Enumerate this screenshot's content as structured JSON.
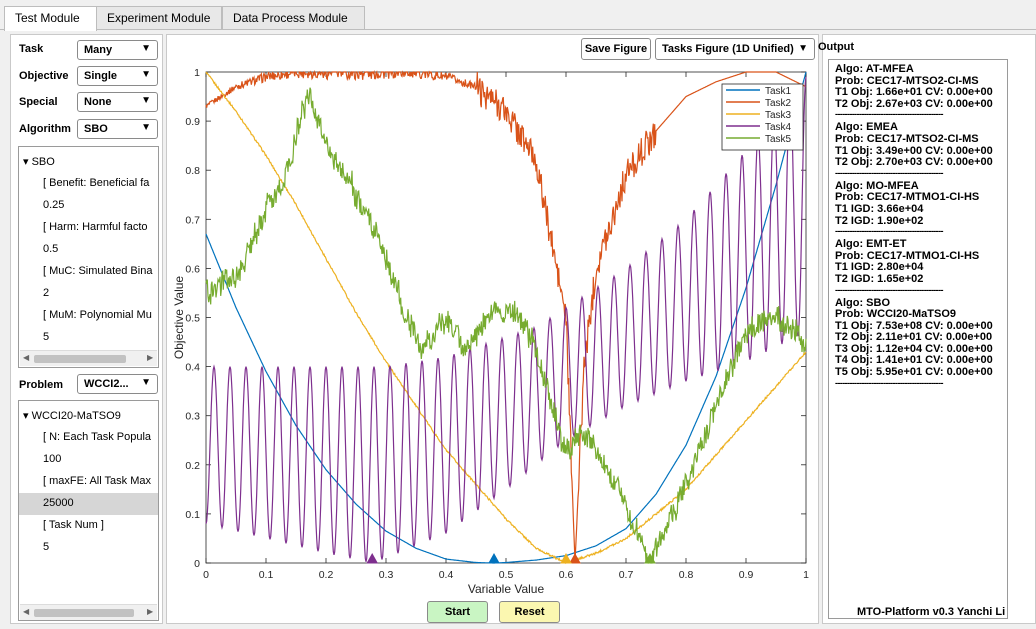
{
  "tabs": [
    {
      "label": "Test Module",
      "active": true
    },
    {
      "label": "Experiment Module",
      "active": false
    },
    {
      "label": "Data Process Module",
      "active": false
    }
  ],
  "left": {
    "task": {
      "label": "Task",
      "value": "Many"
    },
    "objective": {
      "label": "Objective",
      "value": "Single"
    },
    "special": {
      "label": "Special",
      "value": "None"
    },
    "algorithm": {
      "label": "Algorithm",
      "value": "SBO"
    },
    "algo_tree": [
      {
        "text": "▾ SBO",
        "indent": 0
      },
      {
        "text": "[ Benefit: Beneficial fa",
        "indent": 1
      },
      {
        "text": "0.25",
        "indent": 1
      },
      {
        "text": "[ Harm: Harmful facto",
        "indent": 1
      },
      {
        "text": "0.5",
        "indent": 1
      },
      {
        "text": "[ MuC: Simulated Bina",
        "indent": 1
      },
      {
        "text": "2",
        "indent": 1
      },
      {
        "text": "[ MuM: Polynomial Mu",
        "indent": 1
      },
      {
        "text": "5",
        "indent": 1
      }
    ],
    "problem": {
      "label": "Problem",
      "value": "WCCI2..."
    },
    "problem_tree": [
      {
        "text": "▾ WCCI20-MaTSO9",
        "indent": 0,
        "selected": false
      },
      {
        "text": "[ N: Each Task Popula",
        "indent": 1,
        "selected": false
      },
      {
        "text": "100",
        "indent": 1,
        "selected": false
      },
      {
        "text": "[ maxFE: All Task Max",
        "indent": 1,
        "selected": false
      },
      {
        "text": "25000",
        "indent": 1,
        "selected": true
      },
      {
        "text": "[ Task Num ]",
        "indent": 1,
        "selected": false
      },
      {
        "text": "5",
        "indent": 1,
        "selected": false
      }
    ]
  },
  "center": {
    "save_figure": "Save Figure",
    "figure_type": "Tasks Figure (1D Unified)",
    "start": "Start",
    "reset": "Reset"
  },
  "output": {
    "title": "Output",
    "separator": "---------------------------------------------",
    "blocks": [
      [
        "Algo: AT-MFEA",
        "Prob: CEC17-MTSO2-CI-MS",
        "T1 Obj: 1.66e+01 CV: 0.00e+00",
        "T2 Obj: 2.67e+03 CV: 0.00e+00"
      ],
      [
        "Algo: EMEA",
        "Prob: CEC17-MTSO2-CI-MS",
        "T1 Obj: 3.49e+00 CV: 0.00e+00",
        "T2 Obj: 2.70e+03 CV: 0.00e+00"
      ],
      [
        "Algo: MO-MFEA",
        "Prob: CEC17-MTMO1-CI-HS",
        "T1 IGD: 3.66e+04",
        "T2 IGD: 1.90e+02"
      ],
      [
        "Algo: EMT-ET",
        "Prob: CEC17-MTMO1-CI-HS",
        "T1 IGD: 2.80e+04",
        "T2 IGD: 1.65e+02"
      ],
      [
        "Algo: SBO",
        "Prob: WCCI20-MaTSO9",
        "T1 Obj: 7.53e+08 CV: 0.00e+00",
        "T2 Obj: 2.11e+01 CV: 0.00e+00",
        "T3 Obj: 1.12e+04 CV: 0.00e+00",
        "T4 Obj: 1.41e+01 CV: 0.00e+00",
        "T5 Obj: 5.95e+01 CV: 0.00e+00"
      ]
    ],
    "footer": "MTO-Platform v0.3  Yanchi Li"
  },
  "chart_data": {
    "type": "line",
    "xlabel": "Variable Value",
    "ylabel": "Objective Value",
    "xlim": [
      0,
      1
    ],
    "ylim": [
      0,
      1
    ],
    "xticks": [
      "0",
      "0.1",
      "0.2",
      "0.3",
      "0.4",
      "0.5",
      "0.6",
      "0.7",
      "0.8",
      "0.9",
      "1"
    ],
    "yticks": [
      "0",
      "0.1",
      "0.2",
      "0.3",
      "0.4",
      "0.5",
      "0.6",
      "0.7",
      "0.8",
      "0.9",
      "1"
    ],
    "legend_position": "top-right",
    "series": [
      {
        "name": "Task1",
        "color": "#0072bd",
        "optimum_x": 0.48,
        "x": [
          0,
          0.05,
          0.1,
          0.15,
          0.2,
          0.25,
          0.3,
          0.35,
          0.4,
          0.45,
          0.48,
          0.5,
          0.55,
          0.6,
          0.65,
          0.7,
          0.75,
          0.8,
          0.85,
          0.9,
          0.95,
          1
        ],
        "y": [
          0.67,
          0.52,
          0.39,
          0.28,
          0.19,
          0.12,
          0.065,
          0.03,
          0.008,
          0.001,
          0,
          0.001,
          0.006,
          0.015,
          0.035,
          0.07,
          0.14,
          0.24,
          0.38,
          0.56,
          0.77,
          1.0
        ]
      },
      {
        "name": "Task2",
        "color": "#d95319",
        "optimum_x": 0.615,
        "x": [
          0,
          0.05,
          0.1,
          0.15,
          0.2,
          0.25,
          0.3,
          0.35,
          0.4,
          0.45,
          0.5,
          0.55,
          0.6,
          0.615,
          0.63,
          0.65,
          0.7,
          0.75,
          0.8,
          0.85,
          0.9,
          0.95,
          1
        ],
        "y": [
          0.93,
          0.97,
          0.99,
          1.0,
          1.0,
          1.0,
          1.0,
          1.0,
          0.99,
          0.97,
          0.92,
          0.82,
          0.5,
          0.0,
          0.4,
          0.6,
          0.79,
          0.88,
          0.95,
          0.98,
          1.0,
          1.0,
          0.97
        ]
      },
      {
        "name": "Task3",
        "color": "#edb120",
        "optimum_x": 0.6,
        "x": [
          0,
          0.05,
          0.1,
          0.15,
          0.2,
          0.25,
          0.3,
          0.35,
          0.4,
          0.45,
          0.5,
          0.55,
          0.6,
          0.65,
          0.7,
          0.75,
          0.8,
          0.85,
          0.9,
          0.95,
          1
        ],
        "y": [
          1.0,
          0.92,
          0.83,
          0.73,
          0.62,
          0.51,
          0.41,
          0.32,
          0.23,
          0.16,
          0.09,
          0.03,
          0.0,
          0.02,
          0.05,
          0.1,
          0.15,
          0.22,
          0.29,
          0.36,
          0.43
        ]
      },
      {
        "name": "Task4",
        "color": "#7e2f8e",
        "optimum_x": 0.277,
        "x": [
          0,
          0.1,
          0.2,
          0.277,
          0.3,
          0.4,
          0.5,
          0.55,
          0.6,
          0.7,
          0.8,
          0.9,
          1
        ],
        "y_low": [
          0.08,
          0.05,
          0.02,
          0.0,
          0.01,
          0.06,
          0.15,
          0.2,
          0.25,
          0.32,
          0.37,
          0.41,
          0.47
        ],
        "y_high": [
          0.4,
          0.4,
          0.4,
          0.4,
          0.4,
          0.42,
          0.46,
          0.48,
          0.52,
          0.6,
          0.7,
          0.84,
          0.99
        ]
      },
      {
        "name": "Task5",
        "color": "#77ac30",
        "optimum_x": 0.74,
        "x": [
          0,
          0.05,
          0.1,
          0.13,
          0.17,
          0.2,
          0.23,
          0.28,
          0.33,
          0.36,
          0.4,
          0.43,
          0.48,
          0.52,
          0.55,
          0.58,
          0.6,
          0.62,
          0.65,
          0.7,
          0.74,
          0.8,
          0.85,
          0.9,
          0.95,
          1
        ],
        "y": [
          0.55,
          0.58,
          0.72,
          0.78,
          0.96,
          0.85,
          0.8,
          0.68,
          0.52,
          0.43,
          0.5,
          0.43,
          0.52,
          0.51,
          0.44,
          0.3,
          0.22,
          0.27,
          0.24,
          0.12,
          0.0,
          0.16,
          0.32,
          0.47,
          0.5,
          0.45
        ]
      }
    ]
  }
}
